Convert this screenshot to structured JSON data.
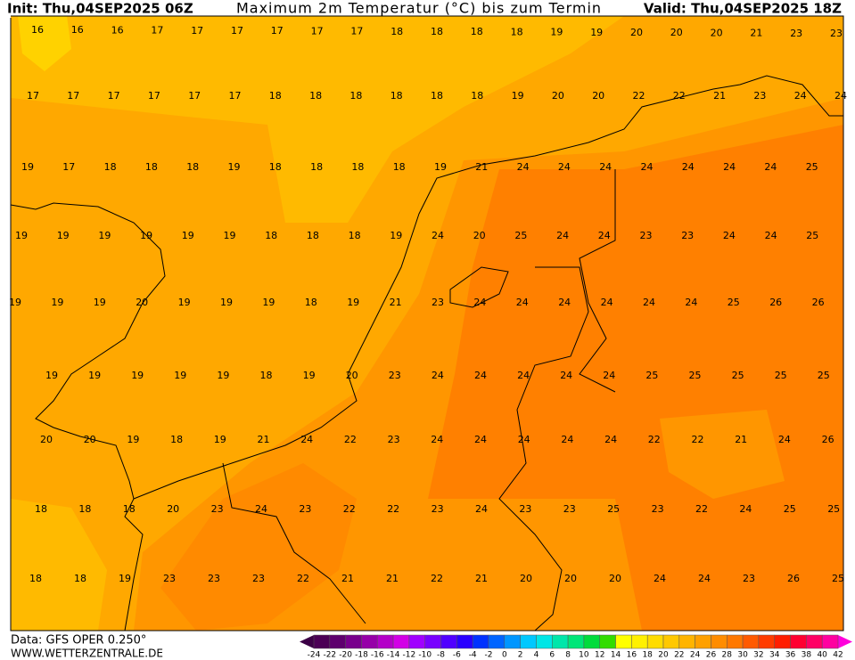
{
  "header": {
    "init": "Init: Thu,04SEP2025 06Z",
    "title": "Maximum 2m Temperatur (°C) bis zum Termin",
    "valid": "Valid: Thu,04SEP2025 18Z"
  },
  "map": {
    "rows": [
      [
        16,
        16,
        16,
        17,
        17,
        17,
        17,
        17,
        17,
        18,
        18,
        18,
        18,
        19,
        19,
        20,
        20,
        20,
        21,
        23,
        23
      ],
      [
        17,
        17,
        17,
        17,
        17,
        17,
        18,
        18,
        18,
        18,
        18,
        18,
        19,
        20,
        20,
        22,
        22,
        21,
        23,
        24,
        24
      ],
      [
        19,
        17,
        18,
        18,
        18,
        19,
        18,
        18,
        18,
        18,
        19,
        21,
        24,
        24,
        24,
        24,
        24,
        24,
        24,
        25
      ],
      [
        19,
        19,
        19,
        19,
        19,
        19,
        18,
        18,
        18,
        19,
        24,
        20,
        25,
        24,
        24,
        23,
        23,
        24,
        24,
        25
      ],
      [
        19,
        19,
        19,
        20,
        19,
        19,
        19,
        18,
        19,
        21,
        23,
        24,
        24,
        24,
        24,
        24,
        24,
        25,
        26,
        26
      ],
      [
        19,
        19,
        19,
        19,
        19,
        18,
        19,
        20,
        23,
        24,
        24,
        24,
        24,
        24,
        25,
        25,
        25,
        25,
        25
      ],
      [
        20,
        20,
        19,
        18,
        19,
        21,
        24,
        22,
        23,
        24,
        24,
        24,
        24,
        24,
        22,
        22,
        21,
        24,
        26
      ],
      [
        18,
        18,
        18,
        20,
        23,
        24,
        23,
        22,
        22,
        23,
        24,
        23,
        23,
        25,
        23,
        22,
        24,
        25,
        25
      ],
      [
        18,
        18,
        19,
        23,
        23,
        23,
        22,
        21,
        21,
        22,
        21,
        20,
        20,
        20,
        24,
        24,
        23,
        26,
        25
      ]
    ]
  },
  "legend": {
    "labels": [
      -24,
      -22,
      -20,
      -18,
      -16,
      -14,
      -12,
      -10,
      -8,
      -6,
      -4,
      -2,
      0,
      2,
      4,
      6,
      8,
      10,
      12,
      14,
      16,
      18,
      20,
      22,
      24,
      26,
      28,
      30,
      32,
      34,
      36,
      38,
      40,
      42
    ]
  },
  "footer": {
    "data": "Data: GFS OPER 0.250°",
    "site": "WWW.WETTERZENTRALE.DE"
  }
}
